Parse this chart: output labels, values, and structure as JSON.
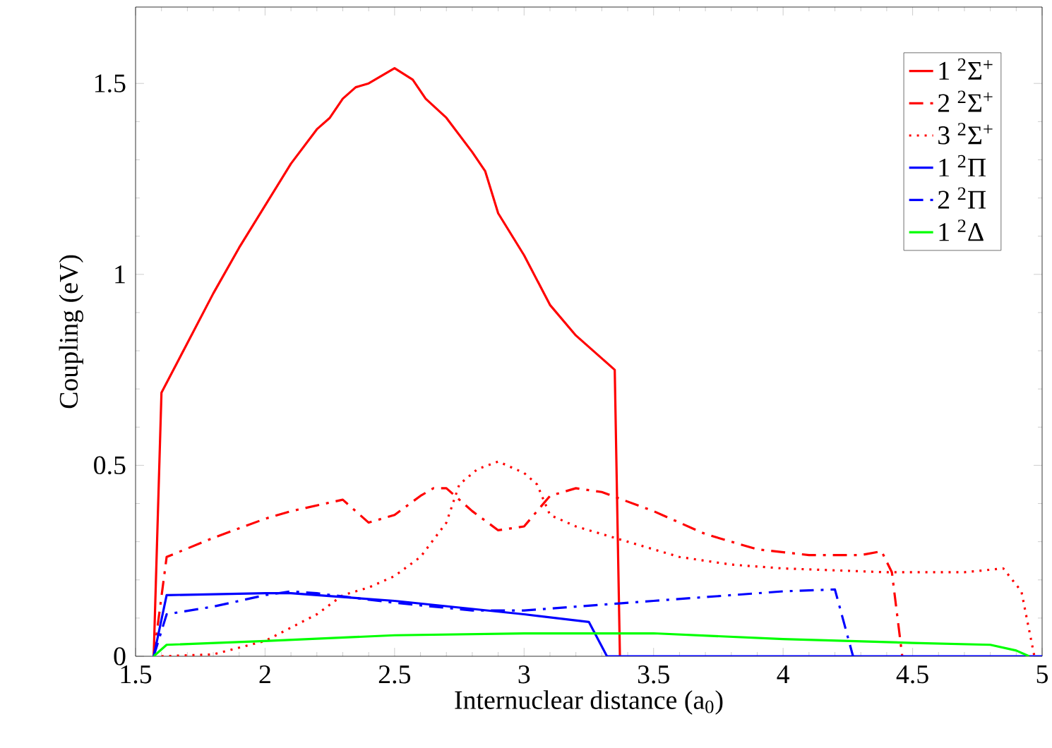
{
  "chart_data": {
    "type": "line",
    "xlabel": "Internuclear distance (a$_{0}$)",
    "ylabel": "Coupling (eV)",
    "xlim": [
      1.5,
      5
    ],
    "ylim": [
      0,
      1.7
    ],
    "xticks": [
      1.5,
      2,
      2.5,
      3,
      3.5,
      4,
      4.5,
      5
    ],
    "yticks": [
      0,
      0.5,
      1,
      1.5
    ],
    "grid": false,
    "legend": "top right",
    "marker": "none",
    "series": [
      {
        "name": "1 $^{2}$Σ$^{+}$",
        "color": "#ff0000",
        "line_style": "solid",
        "x": [
          1.57,
          1.6,
          1.7,
          1.8,
          1.9,
          2.0,
          2.1,
          2.2,
          2.25,
          2.3,
          2.35,
          2.4,
          2.45,
          2.5,
          2.57,
          2.62,
          2.7,
          2.8,
          2.85,
          2.9,
          3.0,
          3.1,
          3.2,
          3.3,
          3.35,
          3.37
        ],
        "values": [
          0,
          0.69,
          0.82,
          0.95,
          1.07,
          1.18,
          1.29,
          1.38,
          1.41,
          1.46,
          1.49,
          1.5,
          1.52,
          1.54,
          1.51,
          1.46,
          1.41,
          1.32,
          1.27,
          1.16,
          1.05,
          0.92,
          0.84,
          0.78,
          0.75,
          0
        ]
      },
      {
        "name": "2 $^{2}$Σ$^{+}$",
        "color": "#ff0000",
        "line_style": "dashdot",
        "x": [
          1.57,
          1.62,
          1.8,
          2.0,
          2.1,
          2.3,
          2.4,
          2.5,
          2.6,
          2.65,
          2.7,
          2.8,
          2.9,
          3.0,
          3.1,
          3.2,
          3.3,
          3.5,
          3.7,
          3.9,
          4.1,
          4.3,
          4.38,
          4.42,
          4.46
        ],
        "values": [
          0,
          0.26,
          0.31,
          0.36,
          0.38,
          0.41,
          0.35,
          0.37,
          0.42,
          0.44,
          0.44,
          0.38,
          0.33,
          0.34,
          0.42,
          0.44,
          0.43,
          0.38,
          0.32,
          0.28,
          0.265,
          0.265,
          0.275,
          0.22,
          0
        ]
      },
      {
        "name": "3 $^{2}$Σ$^{+}$",
        "color": "#ff0000",
        "line_style": "dotted",
        "x": [
          1.6,
          1.8,
          2.0,
          2.2,
          2.3,
          2.4,
          2.5,
          2.6,
          2.7,
          2.75,
          2.82,
          2.9,
          3.0,
          3.05,
          3.1,
          3.2,
          3.4,
          3.6,
          3.8,
          4.0,
          4.4,
          4.7,
          4.85,
          4.92,
          4.97
        ],
        "values": [
          0,
          0.005,
          0.04,
          0.11,
          0.16,
          0.18,
          0.21,
          0.26,
          0.35,
          0.45,
          0.49,
          0.51,
          0.48,
          0.45,
          0.37,
          0.34,
          0.3,
          0.26,
          0.24,
          0.23,
          0.22,
          0.22,
          0.23,
          0.17,
          0
        ]
      },
      {
        "name": "1 $^{2}$Π",
        "color": "#0000ff",
        "line_style": "solid",
        "x": [
          1.57,
          1.62,
          2.0,
          2.1,
          2.5,
          3.0,
          3.25,
          3.32,
          5.0
        ],
        "values": [
          0,
          0.16,
          0.165,
          0.165,
          0.145,
          0.11,
          0.09,
          0,
          0
        ]
      },
      {
        "name": "2 $^{2}$Π",
        "color": "#0000ff",
        "line_style": "dashdot",
        "x": [
          1.57,
          1.62,
          1.8,
          2.0,
          2.1,
          2.2,
          2.5,
          2.8,
          3.0,
          3.5,
          4.0,
          4.2,
          4.23,
          4.27
        ],
        "values": [
          0,
          0.11,
          0.13,
          0.16,
          0.17,
          0.165,
          0.14,
          0.12,
          0.12,
          0.145,
          0.17,
          0.175,
          0.1,
          0
        ]
      },
      {
        "name": "1 $^{2}$Δ",
        "color": "#00ff00",
        "line_style": "solid",
        "x": [
          1.57,
          1.62,
          2.0,
          2.5,
          3.0,
          3.5,
          4.0,
          4.5,
          4.8,
          4.9,
          4.95
        ],
        "values": [
          0,
          0.03,
          0.04,
          0.055,
          0.06,
          0.06,
          0.045,
          0.035,
          0.03,
          0.015,
          0
        ]
      }
    ]
  }
}
